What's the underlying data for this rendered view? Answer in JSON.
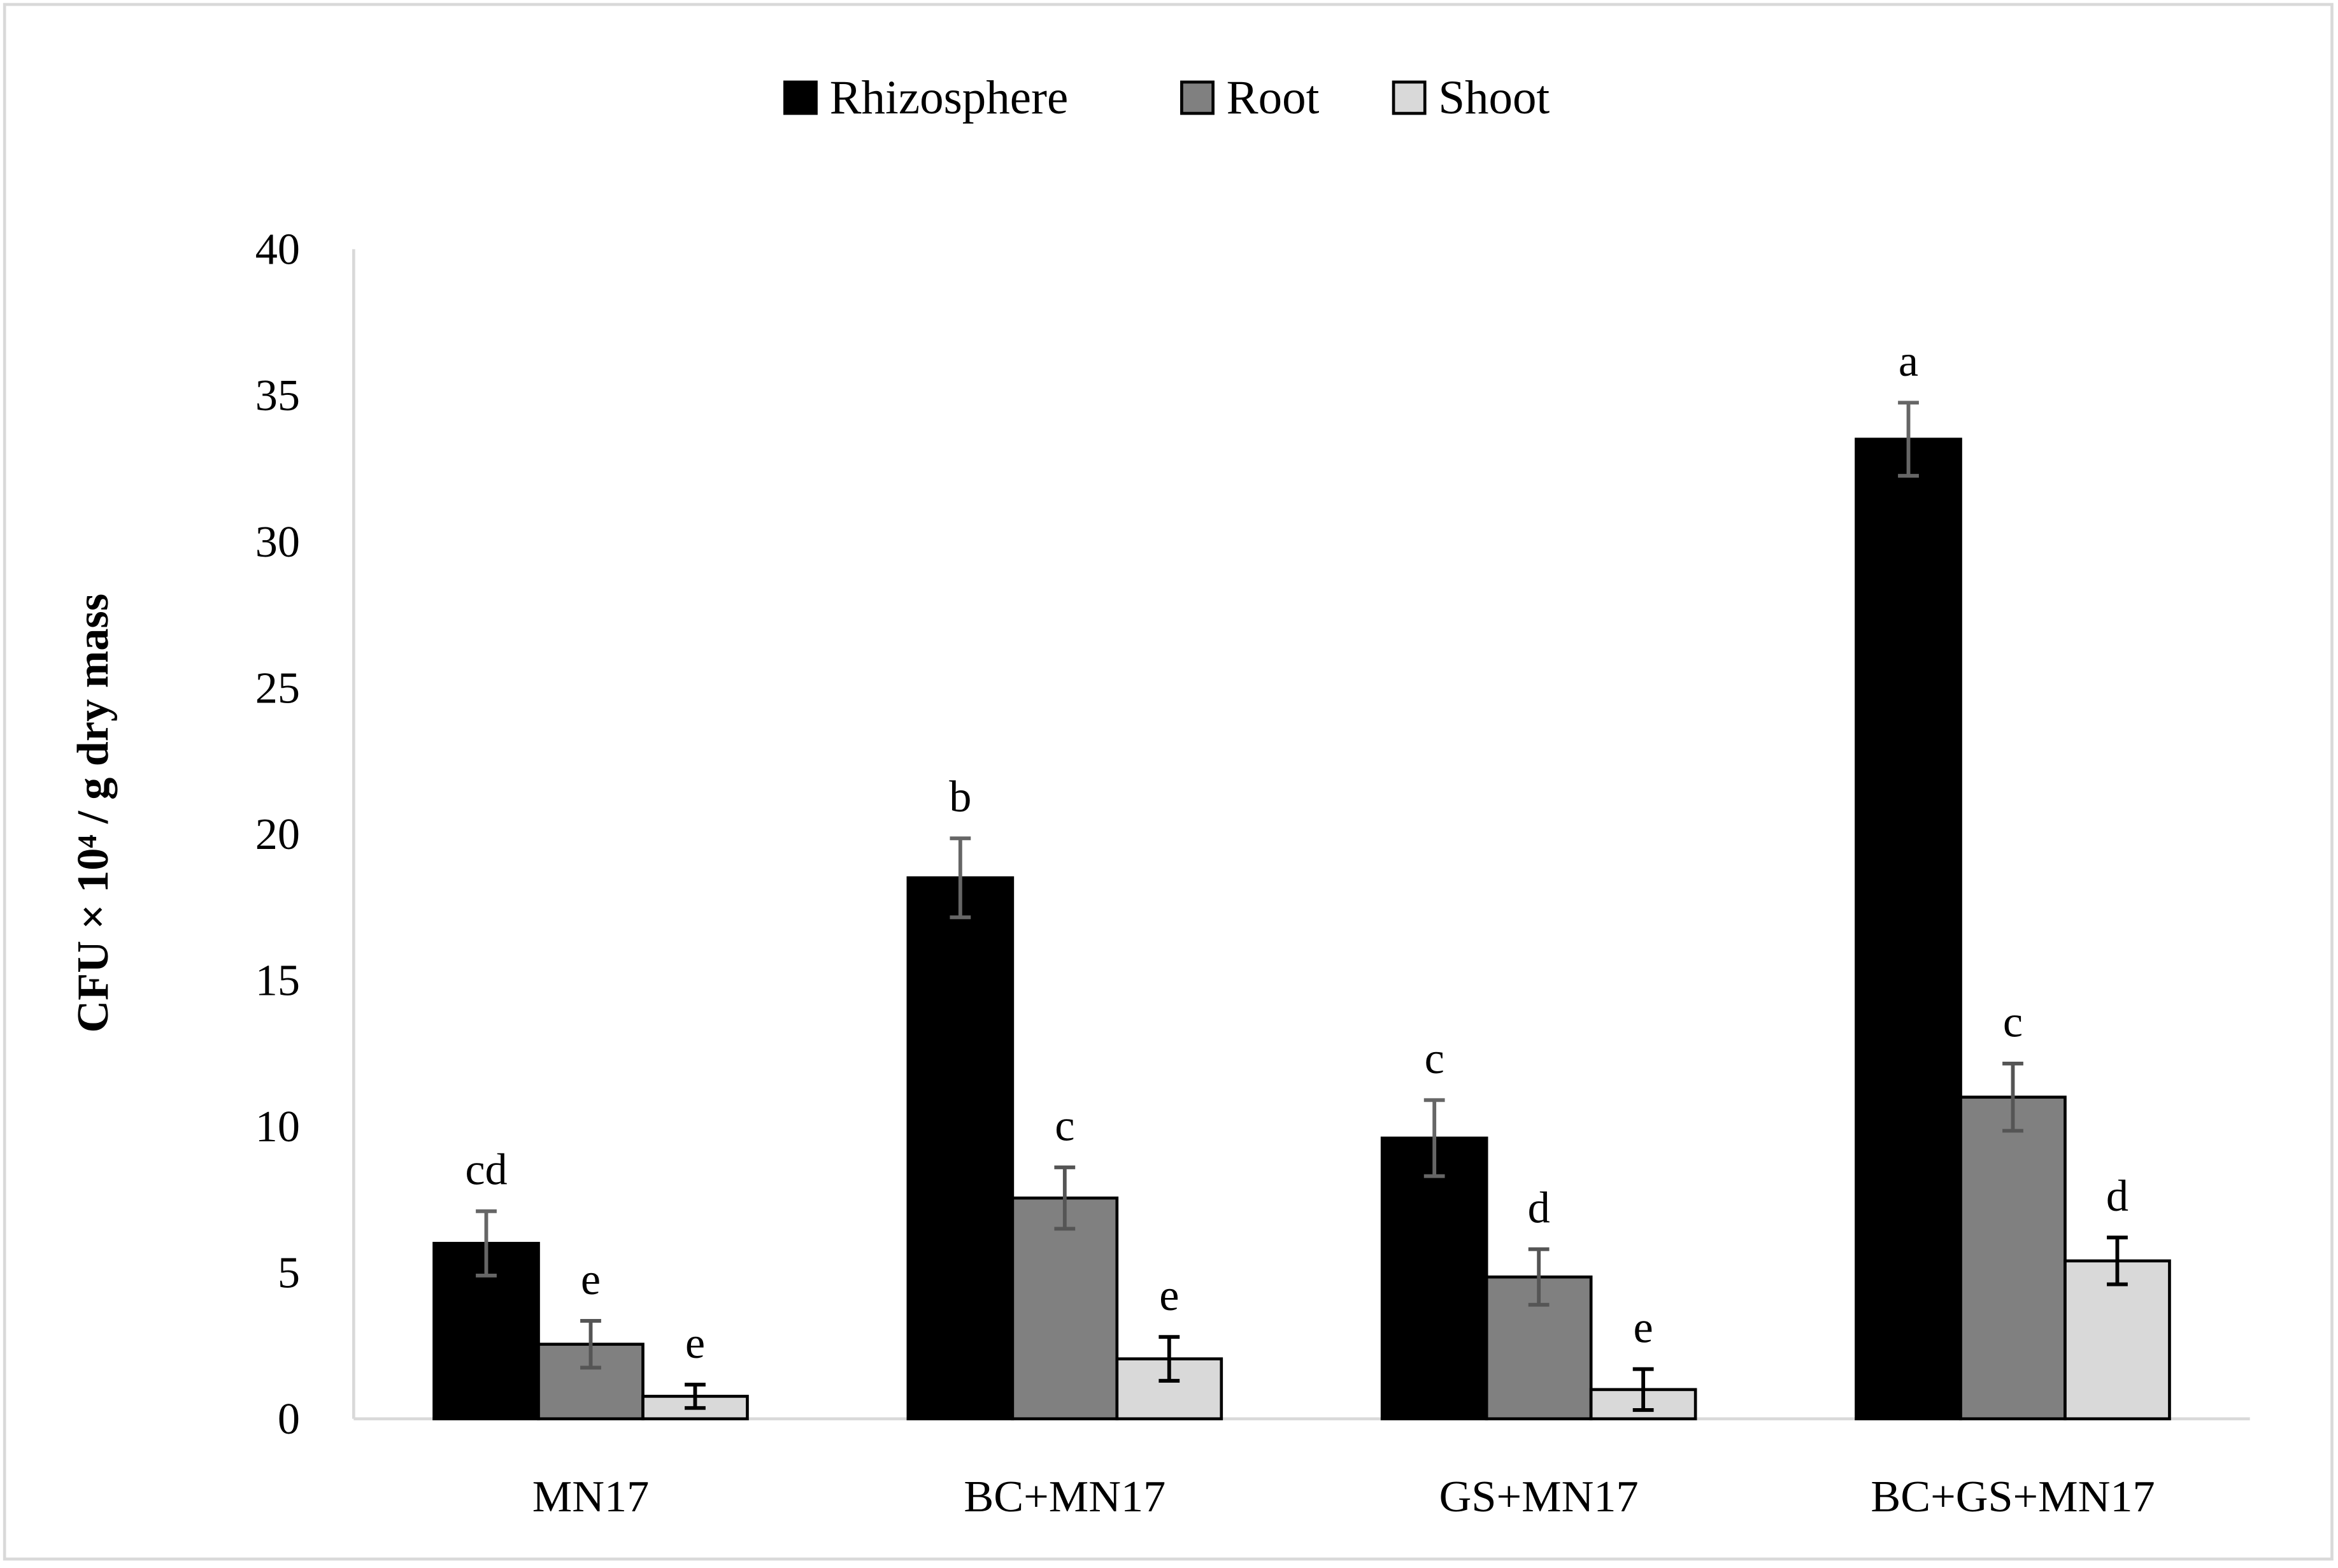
{
  "chart_data": {
    "type": "bar",
    "title": "",
    "xlabel": "",
    "ylabel": "CFU × 10⁴ / g dry mass",
    "ylim": [
      0,
      40
    ],
    "yticks": [
      "0",
      "5",
      "10",
      "15",
      "20",
      "25",
      "30",
      "35",
      "40"
    ],
    "grid": false,
    "legend_position": "top",
    "categories": [
      "MN17",
      "BC+MN17",
      "GS+MN17",
      "BC+GS+MN17"
    ],
    "series": [
      {
        "name": "Rhizosphere",
        "color": "#000000",
        "errcolor": "#666666",
        "values": [
          6.0,
          18.5,
          9.6,
          33.5
        ],
        "errors": [
          1.1,
          1.35,
          1.3,
          1.25
        ],
        "labels": [
          "cd",
          "b",
          "c",
          "a"
        ]
      },
      {
        "name": "Root",
        "color": "#808080",
        "errcolor": "#555555",
        "values": [
          2.55,
          7.55,
          4.85,
          11.0
        ],
        "errors": [
          0.8,
          1.05,
          0.95,
          1.15
        ],
        "labels": [
          "e",
          "c",
          "d",
          "c"
        ]
      },
      {
        "name": "Shoot",
        "color": "#d9d9d9",
        "errcolor": "#000000",
        "values": [
          0.77,
          2.05,
          1.0,
          5.4
        ],
        "errors": [
          0.4,
          0.75,
          0.7,
          0.8
        ],
        "labels": [
          "e",
          "e",
          "e",
          "d"
        ]
      }
    ]
  }
}
